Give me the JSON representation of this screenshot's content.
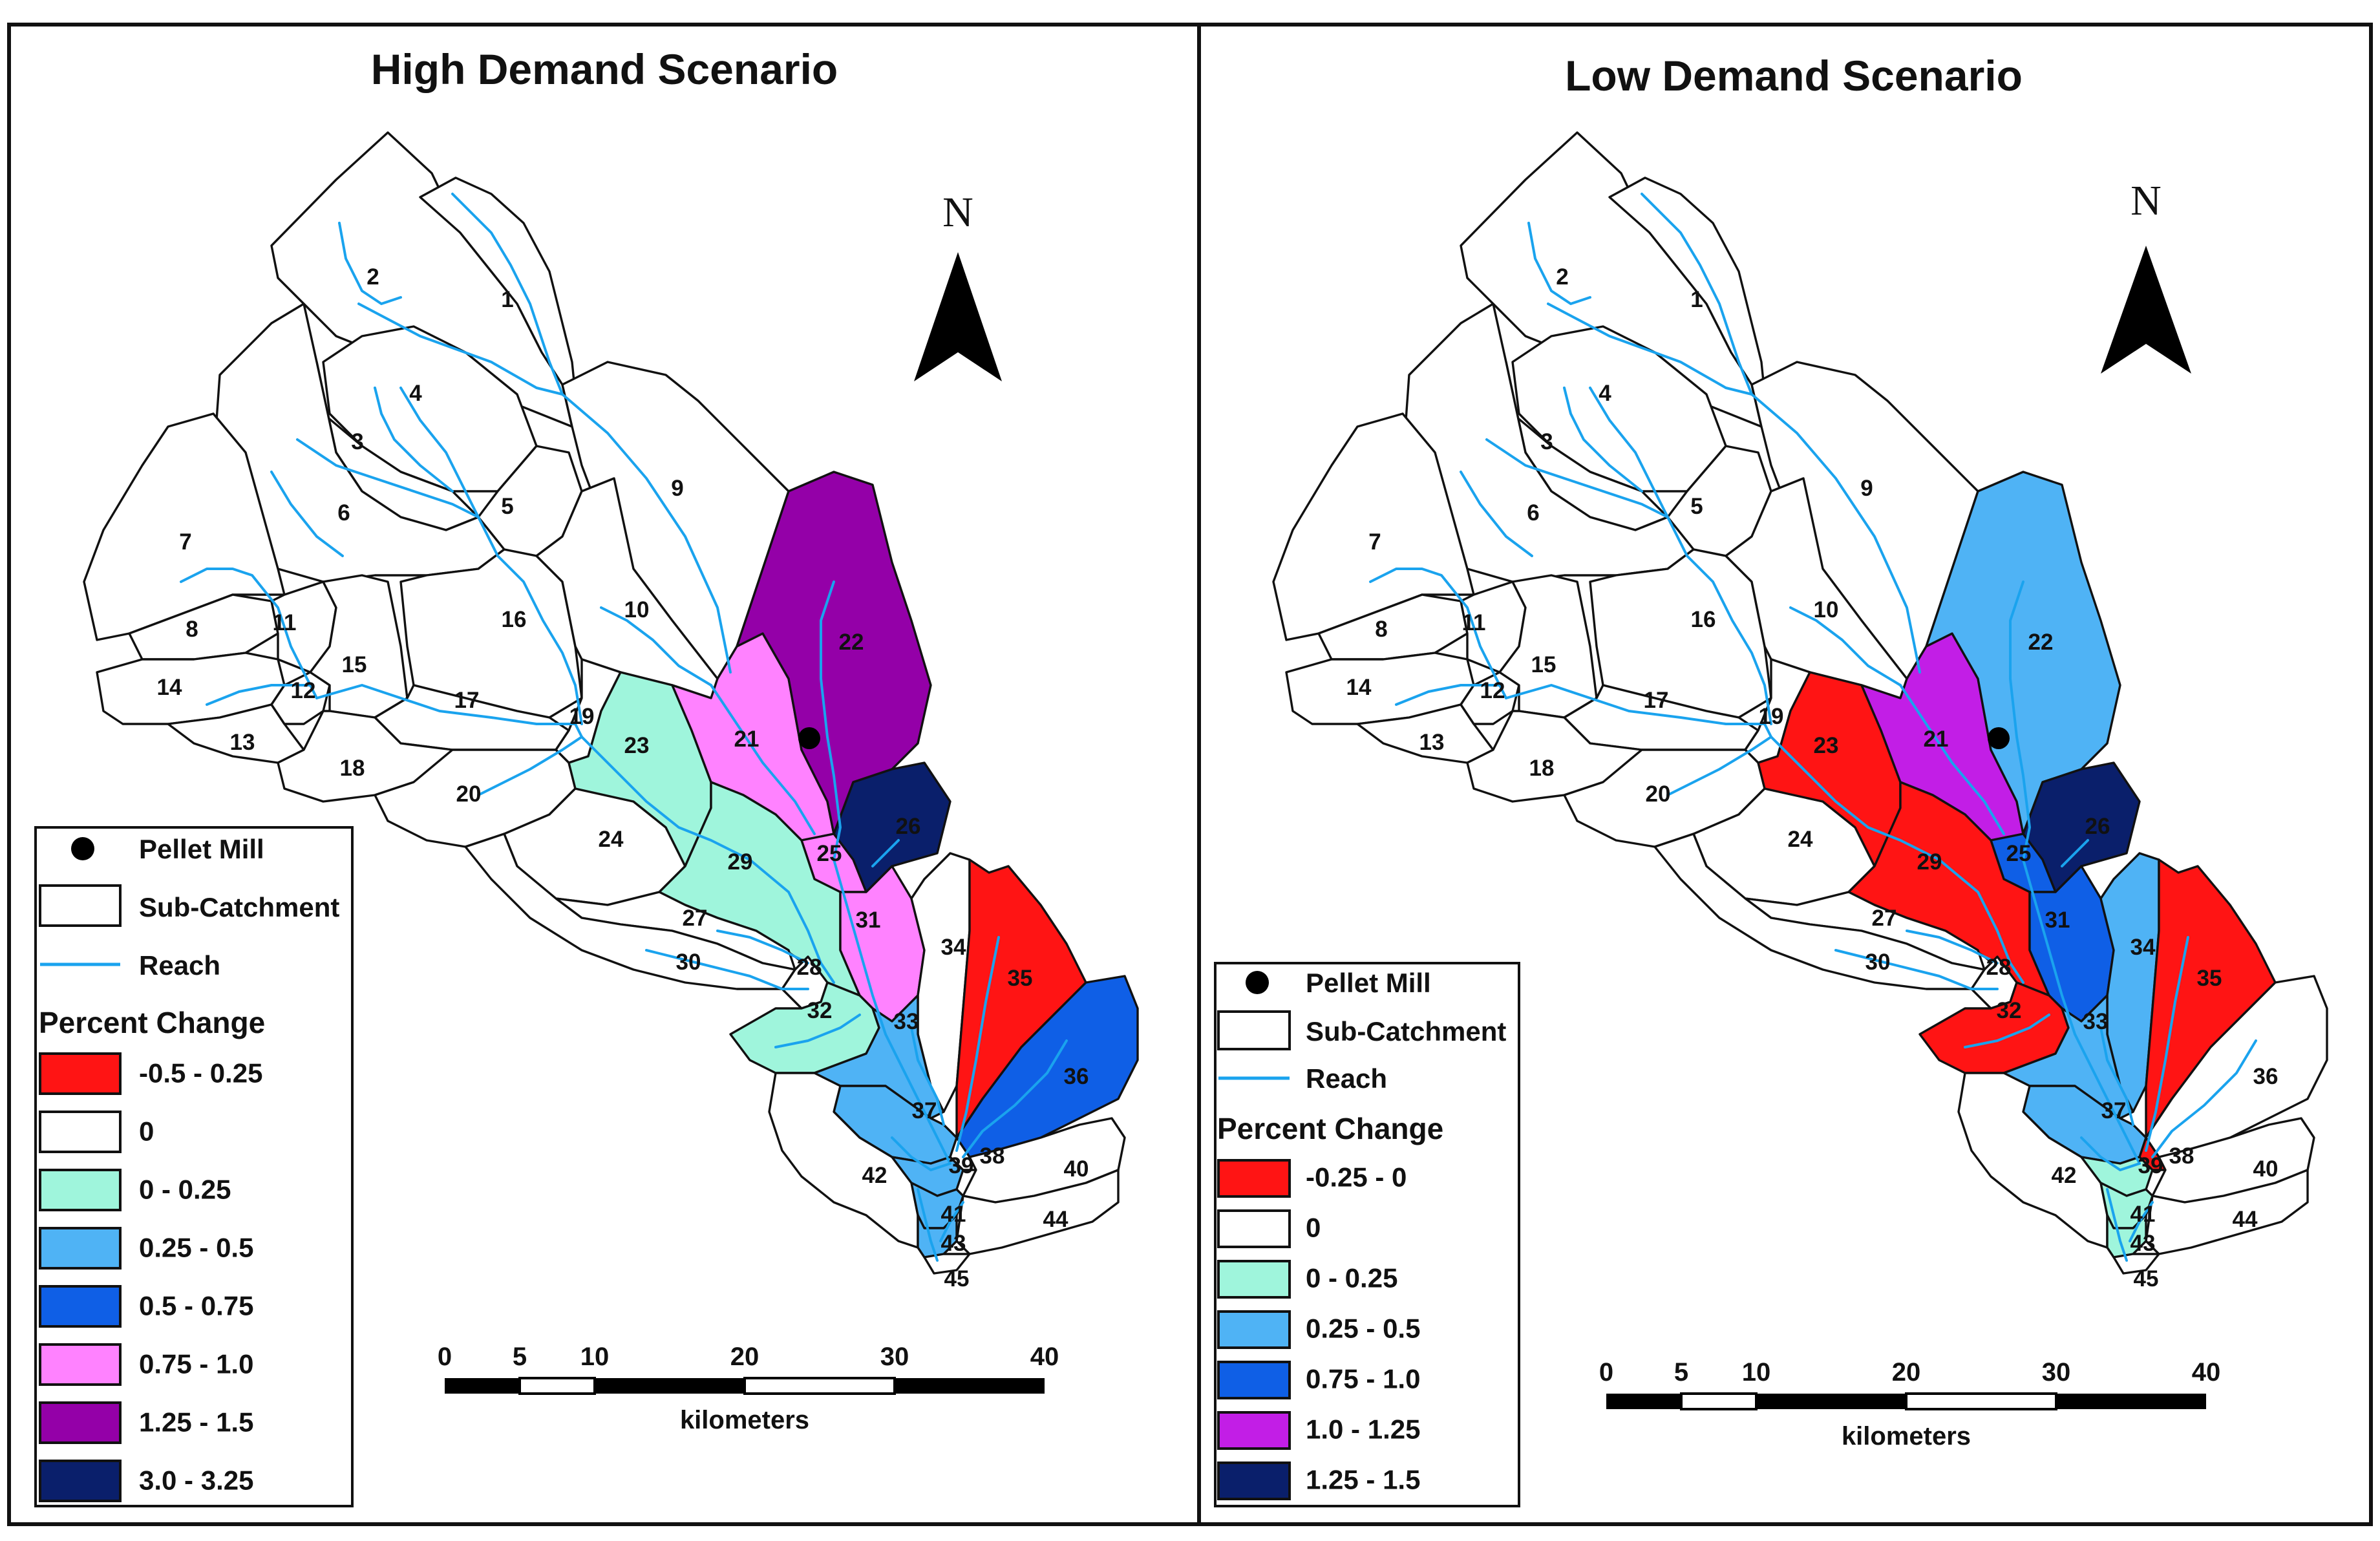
{
  "maps": [
    {
      "title": "High Demand Scenario",
      "north_label": "N",
      "scale": {
        "ticks": [
          "0",
          "5",
          "10",
          "20",
          "30",
          "40"
        ],
        "unit": "kilometers"
      },
      "legend": {
        "pellet_mill": "Pellet Mill",
        "sub_catchment": "Sub-Catchment",
        "reach": "Reach",
        "heading": "Percent Change",
        "classes": [
          {
            "label": "-0.5 - 0.25",
            "color": "#ff1414"
          },
          {
            "label": "0",
            "color": "#ffffff"
          },
          {
            "label": "0 - 0.25",
            "color": "#9ff5dc"
          },
          {
            "label": "0.25 - 0.5",
            "color": "#4fb3f5"
          },
          {
            "label": "0.5 - 0.75",
            "color": "#0f5fe6"
          },
          {
            "label": "0.75 - 1.0",
            "color": "#ff82ff"
          },
          {
            "label": "1.25 - 1.5",
            "color": "#9400a8"
          },
          {
            "label": "3.0 - 3.25",
            "color": "#0a1f6b"
          }
        ]
      },
      "colored": {
        "21": "#ff82ff",
        "22": "#9400a8",
        "23": "#9ff5dc",
        "25": "#ff82ff",
        "26": "#0a1f6b",
        "29": "#9ff5dc",
        "31": "#ff82ff",
        "32": "#9ff5dc",
        "33": "#4fb3f5",
        "35": "#ff1414",
        "36": "#0f5fe6",
        "37": "#4fb3f5",
        "39": "#4fb3f5",
        "41": "#4fb3f5",
        "43": "#4fb3f5"
      }
    },
    {
      "title": "Low Demand Scenario",
      "north_label": "N",
      "scale": {
        "ticks": [
          "0",
          "5",
          "10",
          "20",
          "30",
          "40"
        ],
        "unit": "kilometers"
      },
      "legend": {
        "pellet_mill": "Pellet Mill",
        "sub_catchment": "Sub-Catchment",
        "reach": "Reach",
        "heading": "Percent Change",
        "classes": [
          {
            "label": "-0.25 - 0",
            "color": "#ff1414"
          },
          {
            "label": "0",
            "color": "#ffffff"
          },
          {
            "label": "0 - 0.25",
            "color": "#9ff5dc"
          },
          {
            "label": "0.25 - 0.5",
            "color": "#4fb3f5"
          },
          {
            "label": "0.75 - 1.0",
            "color": "#0f5fe6"
          },
          {
            "label": "1.0 - 1.25",
            "color": "#c21ee6"
          },
          {
            "label": "1.25 - 1.5",
            "color": "#0a1f6b"
          }
        ]
      },
      "colored": {
        "21": "#c21ee6",
        "22": "#4fb3f5",
        "23": "#ff1414",
        "25": "#0f5fe6",
        "26": "#0a1f6b",
        "29": "#ff1414",
        "31": "#0f5fe6",
        "32": "#ff1414",
        "33": "#4fb3f5",
        "34": "#4fb3f5",
        "35": "#ff1414",
        "37": "#4fb3f5",
        "38": "#ff1414",
        "39": "#9ff5dc",
        "41": "#9ff5dc",
        "43": "#9ff5dc"
      }
    }
  ],
  "subcatchment_labels": [
    "1",
    "2",
    "3",
    "4",
    "5",
    "6",
    "7",
    "8",
    "9",
    "10",
    "11",
    "12",
    "13",
    "14",
    "15",
    "16",
    "17",
    "18",
    "19",
    "20",
    "21",
    "22",
    "23",
    "24",
    "25",
    "26",
    "27",
    "28",
    "29",
    "30",
    "31",
    "32",
    "33",
    "34",
    "35",
    "36",
    "37",
    "38",
    "39",
    "40",
    "41",
    "42",
    "43",
    "44",
    "45"
  ]
}
